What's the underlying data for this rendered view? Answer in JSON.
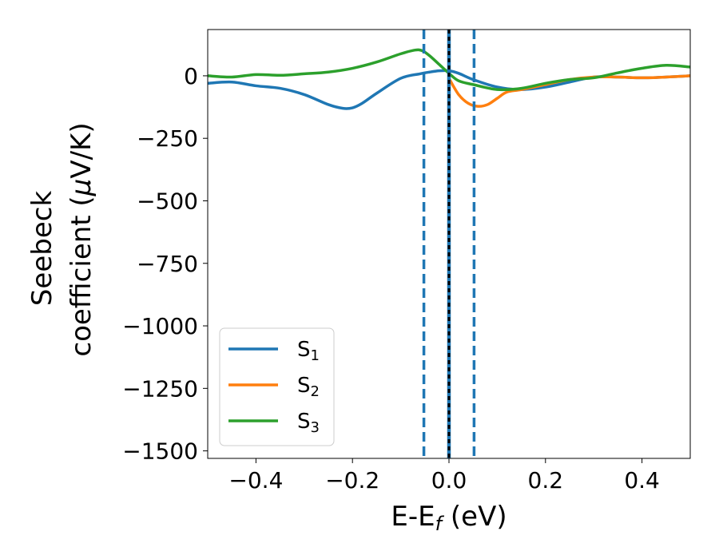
{
  "chart_data": {
    "type": "line",
    "xlabel": "E-E",
    "xlabel_sub": "f",
    "xlabel_unit": " (eV)",
    "ylabel_line1": "Seebeck",
    "ylabel_line2": "coefficient  (",
    "ylabel_mu": "μ",
    "ylabel_unit": "V/K)",
    "xlim": [
      -0.5,
      0.5
    ],
    "ylim": [
      -1530,
      185
    ],
    "xticks": [
      -0.4,
      -0.2,
      0.0,
      0.2,
      0.4
    ],
    "xtick_labels": [
      "−0.4",
      "−0.2",
      "0.0",
      "0.2",
      "0.4"
    ],
    "yticks": [
      0,
      -250,
      -500,
      -750,
      -1000,
      -1250,
      -1500
    ],
    "ytick_labels": [
      "0",
      "−250",
      "−500",
      "−750",
      "−1000",
      "−1250",
      "−1500"
    ],
    "legend_position": "lower-left",
    "vertical_lines": [
      {
        "x": -0.052,
        "style": "dashed",
        "color": "#1f77b4"
      },
      {
        "x": 0.0,
        "style": "solid",
        "color": "#1f77b4"
      },
      {
        "x": 0.0,
        "style": "dotted",
        "color": "#000000"
      },
      {
        "x": 0.052,
        "style": "dashed",
        "color": "#1f77b4"
      }
    ],
    "series": [
      {
        "name": "S",
        "name_sub": "1",
        "color": "#1f77b4",
        "x": [
          -0.5,
          -0.45,
          -0.4,
          -0.35,
          -0.3,
          -0.25,
          -0.22,
          -0.2,
          -0.18,
          -0.15,
          -0.1,
          -0.06,
          -0.04,
          -0.02,
          0.0,
          0.02,
          0.05,
          0.1,
          0.15,
          0.2,
          0.25,
          0.3,
          0.35,
          0.4,
          0.45,
          0.5
        ],
        "y": [
          -30,
          -25,
          -40,
          -50,
          -75,
          -115,
          -130,
          -128,
          -110,
          -70,
          -10,
          8,
          15,
          20,
          20,
          10,
          -15,
          -45,
          -55,
          -45,
          -25,
          -5,
          -5,
          -8,
          -5,
          0
        ]
      },
      {
        "name": "S",
        "name_sub": "2",
        "color": "#ff7f0e",
        "x": [
          0.0,
          0.02,
          0.04,
          0.06,
          0.08,
          0.1,
          0.12,
          0.15,
          0.2,
          0.25,
          0.3,
          0.35,
          0.4,
          0.45,
          0.5
        ],
        "y": [
          -10,
          -75,
          -110,
          -122,
          -115,
          -90,
          -65,
          -55,
          -35,
          -15,
          -5,
          -5,
          -8,
          -5,
          0
        ]
      },
      {
        "name": "S",
        "name_sub": "3",
        "color": "#2ca02c",
        "x": [
          -0.5,
          -0.45,
          -0.4,
          -0.35,
          -0.3,
          -0.25,
          -0.2,
          -0.15,
          -0.1,
          -0.07,
          -0.055,
          -0.04,
          -0.02,
          0.0,
          0.02,
          0.05,
          0.1,
          0.15,
          0.2,
          0.25,
          0.3,
          0.35,
          0.4,
          0.45,
          0.5
        ],
        "y": [
          0,
          -5,
          5,
          2,
          8,
          15,
          30,
          55,
          88,
          103,
          100,
          80,
          45,
          10,
          -20,
          -35,
          -55,
          -50,
          -30,
          -15,
          -8,
          12,
          30,
          42,
          35
        ]
      }
    ]
  }
}
